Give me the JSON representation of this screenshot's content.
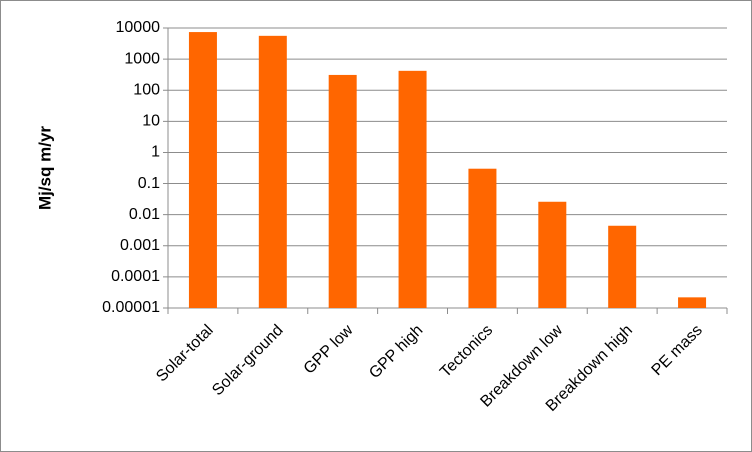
{
  "chart_data": {
    "type": "bar",
    "y_label": "Mj/sq m/yr",
    "categories": [
      "Solar-total",
      "Solar-ground",
      "GPP low",
      "GPP high",
      "Tectonics",
      "Breakdown low",
      "Breakdown high",
      "PE mass"
    ],
    "values": [
      7400,
      5600,
      310,
      420,
      0.3,
      0.026,
      0.0044,
      2.2e-05
    ],
    "color": "#ff6600",
    "ylim": [
      1e-05,
      10000
    ],
    "yticks": [
      {
        "value": 1e-05,
        "label": "0.00001"
      },
      {
        "value": 0.0001,
        "label": "0.0001"
      },
      0.001,
      0.01,
      0.1,
      1,
      10,
      100,
      1000,
      10000
    ],
    "log_scale": true,
    "grid": true
  }
}
